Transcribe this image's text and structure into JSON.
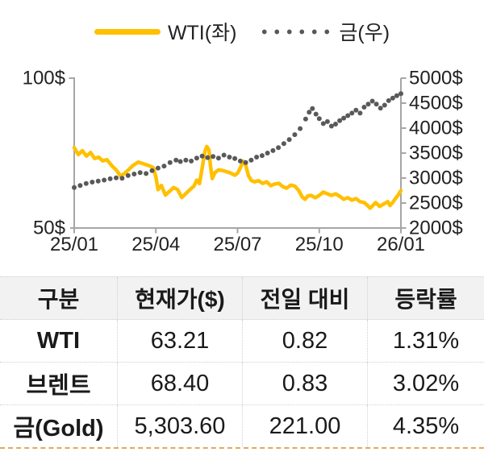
{
  "legend": {
    "wti_label": "WTI(좌)",
    "gold_label": "금(우)"
  },
  "colors": {
    "wti": "#FFC000",
    "gold": "#595959",
    "axis": "#A6A6A6",
    "table_header_bg": "#F2F2F2",
    "table_border": "#D0D0D0",
    "table_bottom_accent": "#DCAB63"
  },
  "chart_data": {
    "type": "line",
    "title": "WTI vs Gold price trend",
    "x_axis": {
      "min": 0,
      "max": 12,
      "ticks": [
        {
          "label": "25/01",
          "value": 0
        },
        {
          "label": "25/04",
          "value": 3
        },
        {
          "label": "25/07",
          "value": 6
        },
        {
          "label": "25/10",
          "value": 9
        },
        {
          "label": "26/01",
          "value": 12
        }
      ]
    },
    "left_axis": {
      "min": 50,
      "max": 100,
      "unit": "$",
      "ticks": [
        {
          "label": "100$",
          "value": 100
        },
        {
          "label": "50$",
          "value": 50
        }
      ]
    },
    "right_axis": {
      "min": 2000,
      "max": 5000,
      "unit": "$",
      "ticks": [
        {
          "label": "5000$",
          "value": 5000
        },
        {
          "label": "4500$",
          "value": 4500
        },
        {
          "label": "4000$",
          "value": 4000
        },
        {
          "label": "3500$",
          "value": 3500
        },
        {
          "label": "3000$",
          "value": 3000
        },
        {
          "label": "2500$",
          "value": 2500
        },
        {
          "label": "2000$",
          "value": 2000
        }
      ]
    },
    "series": [
      {
        "name": "WTI(좌)",
        "axis": "left",
        "style": "line",
        "color": "#FFC000",
        "points": [
          [
            0,
            76.8
          ],
          [
            0.15,
            74.5
          ],
          [
            0.3,
            75.8
          ],
          [
            0.45,
            74.0
          ],
          [
            0.6,
            75.2
          ],
          [
            0.75,
            73.2
          ],
          [
            0.9,
            73.6
          ],
          [
            1.05,
            72.4
          ],
          [
            1.2,
            72.8
          ],
          [
            1.4,
            70.6
          ],
          [
            1.55,
            69.3
          ],
          [
            1.7,
            67.4
          ],
          [
            1.85,
            68.2
          ],
          [
            2.0,
            69.5
          ],
          [
            2.15,
            70.8
          ],
          [
            2.35,
            72.0
          ],
          [
            2.55,
            71.4
          ],
          [
            2.75,
            70.8
          ],
          [
            2.9,
            70.2
          ],
          [
            3.0,
            67.0
          ],
          [
            3.08,
            62.8
          ],
          [
            3.2,
            64.2
          ],
          [
            3.35,
            61.0
          ],
          [
            3.5,
            62.2
          ],
          [
            3.65,
            63.5
          ],
          [
            3.8,
            62.8
          ],
          [
            3.95,
            60.2
          ],
          [
            4.1,
            61.5
          ],
          [
            4.25,
            62.8
          ],
          [
            4.4,
            64.0
          ],
          [
            4.5,
            66.0
          ],
          [
            4.6,
            64.8
          ],
          [
            4.7,
            70.0
          ],
          [
            4.8,
            75.5
          ],
          [
            4.87,
            77.2
          ],
          [
            4.95,
            76.0
          ],
          [
            5.0,
            71.0
          ],
          [
            5.07,
            66.5
          ],
          [
            5.17,
            68.5
          ],
          [
            5.3,
            69.4
          ],
          [
            5.45,
            69.2
          ],
          [
            5.6,
            68.8
          ],
          [
            5.75,
            68.3
          ],
          [
            5.9,
            67.6
          ],
          [
            6.0,
            68.3
          ],
          [
            6.1,
            70.0
          ],
          [
            6.2,
            72.3
          ],
          [
            6.3,
            71.0
          ],
          [
            6.4,
            67.5
          ],
          [
            6.5,
            65.9
          ],
          [
            6.62,
            65.4
          ],
          [
            6.77,
            65.8
          ],
          [
            6.92,
            64.9
          ],
          [
            7.07,
            65.4
          ],
          [
            7.22,
            64.1
          ],
          [
            7.37,
            64.7
          ],
          [
            7.52,
            64.9
          ],
          [
            7.66,
            63.8
          ],
          [
            7.8,
            63.3
          ],
          [
            7.95,
            64.3
          ],
          [
            8.1,
            64.0
          ],
          [
            8.25,
            62.5
          ],
          [
            8.38,
            60.3
          ],
          [
            8.48,
            59.6
          ],
          [
            8.58,
            60.7
          ],
          [
            8.7,
            60.9
          ],
          [
            8.85,
            60.1
          ],
          [
            9.0,
            60.9
          ],
          [
            9.15,
            62.0
          ],
          [
            9.3,
            61.4
          ],
          [
            9.45,
            60.9
          ],
          [
            9.6,
            61.4
          ],
          [
            9.75,
            60.6
          ],
          [
            9.9,
            59.6
          ],
          [
            10.05,
            60.1
          ],
          [
            10.2,
            59.3
          ],
          [
            10.35,
            59.8
          ],
          [
            10.5,
            58.8
          ],
          [
            10.65,
            58.5
          ],
          [
            10.78,
            57.5
          ],
          [
            10.87,
            56.6
          ],
          [
            10.97,
            57.5
          ],
          [
            11.07,
            58.5
          ],
          [
            11.22,
            57.2
          ],
          [
            11.37,
            58.0
          ],
          [
            11.52,
            58.8
          ],
          [
            11.6,
            57.5
          ],
          [
            11.72,
            58.8
          ],
          [
            11.82,
            60.1
          ],
          [
            11.9,
            61.0
          ],
          [
            12,
            62.5
          ]
        ]
      },
      {
        "name": "금(우)",
        "axis": "right",
        "style": "dots",
        "color": "#595959",
        "points": [
          [
            0,
            2810
          ],
          [
            0.22,
            2850
          ],
          [
            0.44,
            2890
          ],
          [
            0.66,
            2920
          ],
          [
            0.88,
            2940
          ],
          [
            1.1,
            2960
          ],
          [
            1.32,
            2985
          ],
          [
            1.54,
            3005
          ],
          [
            1.76,
            2995
          ],
          [
            1.98,
            3050
          ],
          [
            2.2,
            3080
          ],
          [
            2.42,
            3110
          ],
          [
            2.64,
            3090
          ],
          [
            2.86,
            3150
          ],
          [
            3.08,
            3200
          ],
          [
            3.3,
            3240
          ],
          [
            3.52,
            3310
          ],
          [
            3.74,
            3360
          ],
          [
            3.9,
            3330
          ],
          [
            4.1,
            3360
          ],
          [
            4.3,
            3340
          ],
          [
            4.5,
            3400
          ],
          [
            4.7,
            3440
          ],
          [
            4.9,
            3410
          ],
          [
            5.1,
            3430
          ],
          [
            5.3,
            3400
          ],
          [
            5.5,
            3460
          ],
          [
            5.7,
            3420
          ],
          [
            5.9,
            3390
          ],
          [
            6.1,
            3340
          ],
          [
            6.3,
            3310
          ],
          [
            6.5,
            3360
          ],
          [
            6.7,
            3420
          ],
          [
            6.9,
            3450
          ],
          [
            7.1,
            3500
          ],
          [
            7.3,
            3550
          ],
          [
            7.5,
            3610
          ],
          [
            7.7,
            3690
          ],
          [
            7.9,
            3770
          ],
          [
            8.1,
            3870
          ],
          [
            8.3,
            3990
          ],
          [
            8.5,
            4180
          ],
          [
            8.63,
            4320
          ],
          [
            8.75,
            4390
          ],
          [
            8.88,
            4280
          ],
          [
            9.0,
            4190
          ],
          [
            9.15,
            4090
          ],
          [
            9.3,
            4130
          ],
          [
            9.45,
            4040
          ],
          [
            9.6,
            4080
          ],
          [
            9.75,
            4150
          ],
          [
            9.9,
            4200
          ],
          [
            10.05,
            4250
          ],
          [
            10.2,
            4300
          ],
          [
            10.35,
            4360
          ],
          [
            10.5,
            4300
          ],
          [
            10.65,
            4420
          ],
          [
            10.8,
            4480
          ],
          [
            10.95,
            4540
          ],
          [
            11.1,
            4480
          ],
          [
            11.25,
            4400
          ],
          [
            11.4,
            4460
          ],
          [
            11.55,
            4550
          ],
          [
            11.7,
            4600
          ],
          [
            11.85,
            4650
          ],
          [
            12,
            4690
          ]
        ]
      }
    ]
  },
  "table": {
    "headers": [
      "구분",
      "현재가($)",
      "전일 대비",
      "등락률"
    ],
    "rows": [
      [
        "WTI",
        "63.21",
        "0.82",
        "1.31%"
      ],
      [
        "브렌트",
        "68.40",
        "0.83",
        "3.02%"
      ],
      [
        "금(Gold)",
        "5,303.60",
        "221.00",
        "4.35%"
      ]
    ]
  }
}
